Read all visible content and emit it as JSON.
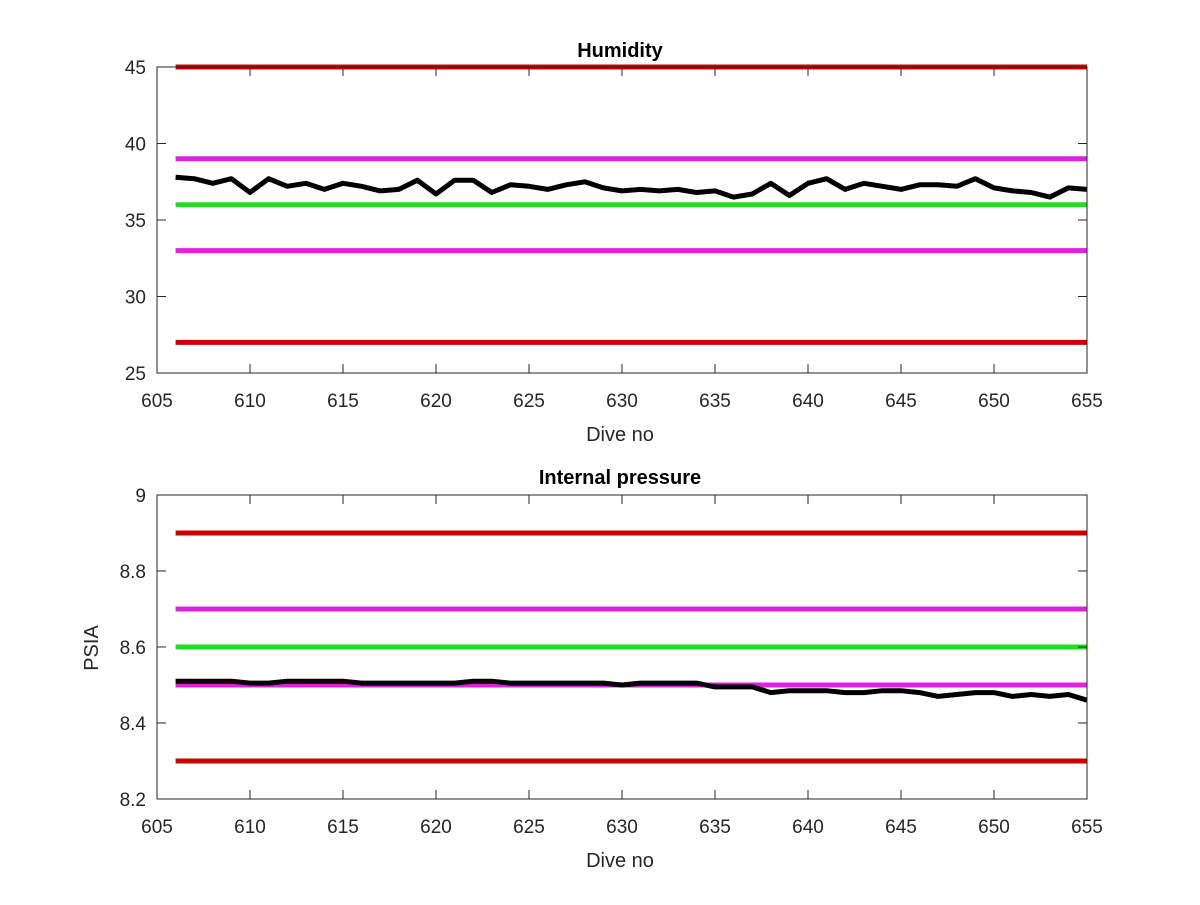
{
  "chart_data": [
    {
      "type": "line",
      "title": "Humidity",
      "xlabel": "Dive no",
      "ylabel": "",
      "xlim": [
        605,
        655
      ],
      "ylim": [
        25,
        45
      ],
      "xticks": [
        605,
        610,
        615,
        620,
        625,
        630,
        635,
        640,
        645,
        650,
        655
      ],
      "yticks": [
        25,
        30,
        35,
        40,
        45
      ],
      "grid": false,
      "reference_lines": [
        {
          "y": 45,
          "color": "#cc0000"
        },
        {
          "y": 39,
          "color": "#e020e0"
        },
        {
          "y": 36,
          "color": "#22dd22"
        },
        {
          "y": 33,
          "color": "#e020e0"
        },
        {
          "y": 27,
          "color": "#cc0000"
        }
      ],
      "series": [
        {
          "color": "#000000",
          "x": [
            606,
            607,
            608,
            609,
            610,
            611,
            612,
            613,
            614,
            615,
            616,
            617,
            618,
            619,
            620,
            621,
            622,
            623,
            624,
            625,
            626,
            627,
            628,
            629,
            630,
            631,
            632,
            633,
            634,
            635,
            636,
            637,
            638,
            639,
            640,
            641,
            642,
            643,
            644,
            645,
            646,
            647,
            648,
            649,
            650,
            651,
            652,
            653,
            654,
            655
          ],
          "y": [
            37.8,
            37.7,
            37.4,
            37.7,
            36.8,
            37.7,
            37.2,
            37.4,
            37.0,
            37.4,
            37.2,
            36.9,
            37.0,
            37.6,
            36.7,
            37.6,
            37.6,
            36.8,
            37.3,
            37.2,
            37.0,
            37.3,
            37.5,
            37.1,
            36.9,
            37.0,
            36.9,
            37.0,
            36.8,
            36.9,
            36.5,
            36.7,
            37.4,
            36.6,
            37.4,
            37.7,
            37.0,
            37.4,
            37.2,
            37.0,
            37.3,
            37.3,
            37.2,
            37.7,
            37.1,
            36.9,
            36.8,
            36.5,
            37.1,
            37.0
          ]
        }
      ]
    },
    {
      "type": "line",
      "title": "Internal pressure",
      "xlabel": "Dive no",
      "ylabel": "PSIA",
      "xlim": [
        605,
        655
      ],
      "ylim": [
        8.2,
        9.0
      ],
      "xticks": [
        605,
        610,
        615,
        620,
        625,
        630,
        635,
        640,
        645,
        650,
        655
      ],
      "yticks": [
        8.2,
        8.4,
        8.6,
        8.8,
        9.0
      ],
      "ytick_labels": [
        "8.2",
        "8.4",
        "8.6",
        "8.8",
        "9"
      ],
      "grid": false,
      "reference_lines": [
        {
          "y": 8.9,
          "color": "#cc0000"
        },
        {
          "y": 8.7,
          "color": "#e020e0"
        },
        {
          "y": 8.6,
          "color": "#22dd22"
        },
        {
          "y": 8.5,
          "color": "#e020e0"
        },
        {
          "y": 8.3,
          "color": "#cc0000"
        }
      ],
      "series": [
        {
          "color": "#000000",
          "x": [
            606,
            607,
            608,
            609,
            610,
            611,
            612,
            613,
            614,
            615,
            616,
            617,
            618,
            619,
            620,
            621,
            622,
            623,
            624,
            625,
            626,
            627,
            628,
            629,
            630,
            631,
            632,
            633,
            634,
            635,
            636,
            637,
            638,
            639,
            640,
            641,
            642,
            643,
            644,
            645,
            646,
            647,
            648,
            649,
            650,
            651,
            652,
            653,
            654,
            655
          ],
          "y": [
            8.51,
            8.51,
            8.51,
            8.51,
            8.505,
            8.505,
            8.51,
            8.51,
            8.51,
            8.51,
            8.505,
            8.505,
            8.505,
            8.505,
            8.505,
            8.505,
            8.51,
            8.51,
            8.505,
            8.505,
            8.505,
            8.505,
            8.505,
            8.505,
            8.5,
            8.505,
            8.505,
            8.505,
            8.505,
            8.495,
            8.495,
            8.495,
            8.48,
            8.485,
            8.485,
            8.485,
            8.48,
            8.48,
            8.485,
            8.485,
            8.48,
            8.47,
            8.475,
            8.48,
            8.48,
            8.47,
            8.475,
            8.47,
            8.475,
            8.46
          ]
        }
      ]
    }
  ]
}
